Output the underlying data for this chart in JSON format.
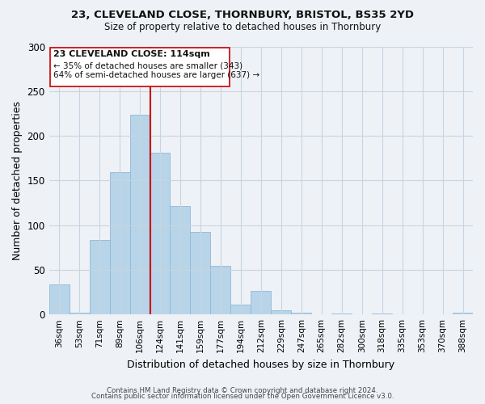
{
  "title": "23, CLEVELAND CLOSE, THORNBURY, BRISTOL, BS35 2YD",
  "subtitle": "Size of property relative to detached houses in Thornbury",
  "xlabel": "Distribution of detached houses by size in Thornbury",
  "ylabel": "Number of detached properties",
  "bar_labels": [
    "36sqm",
    "53sqm",
    "71sqm",
    "89sqm",
    "106sqm",
    "124sqm",
    "141sqm",
    "159sqm",
    "177sqm",
    "194sqm",
    "212sqm",
    "229sqm",
    "247sqm",
    "265sqm",
    "282sqm",
    "300sqm",
    "318sqm",
    "335sqm",
    "353sqm",
    "370sqm",
    "388sqm"
  ],
  "bar_values": [
    34,
    2,
    83,
    159,
    224,
    181,
    121,
    92,
    54,
    11,
    26,
    5,
    2,
    0,
    1,
    0,
    1,
    0,
    0,
    0,
    2
  ],
  "bar_color": "#b8d4e8",
  "bar_edge_color": "#90b8d8",
  "vline_color": "#cc0000",
  "annotation_title": "23 CLEVELAND CLOSE: 114sqm",
  "annotation_line1": "← 35% of detached houses are smaller (343)",
  "annotation_line2": "64% of semi-detached houses are larger (637) →",
  "annotation_box_color": "#ffffff",
  "annotation_box_edge": "#cc0000",
  "ylim": [
    0,
    300
  ],
  "yticks": [
    0,
    50,
    100,
    150,
    200,
    250,
    300
  ],
  "footer1": "Contains HM Land Registry data © Crown copyright and database right 2024.",
  "footer2": "Contains public sector information licensed under the Open Government Licence v3.0.",
  "background_color": "#eef2f7",
  "plot_background": "#eef2f7",
  "grid_color": "#c8d4e0"
}
